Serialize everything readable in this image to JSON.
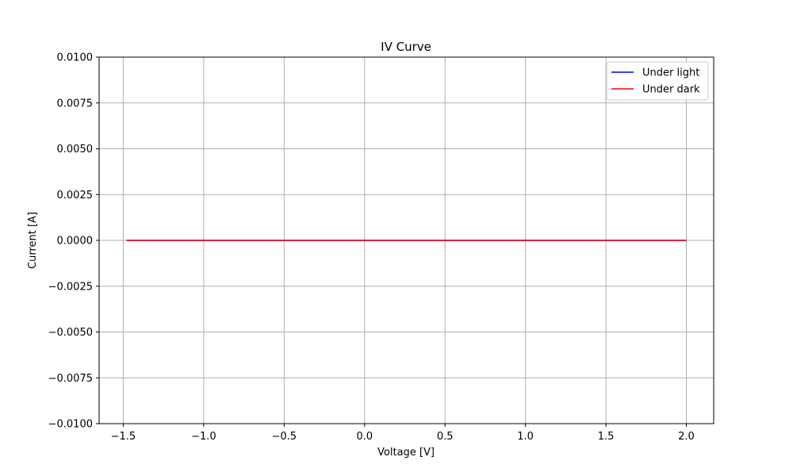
{
  "chart_data": {
    "type": "line",
    "title": "IV Curve",
    "xlabel": "Voltage [V]",
    "ylabel": "Current [A]",
    "xlim": [
      -1.65,
      2.17
    ],
    "ylim": [
      -0.01,
      0.01
    ],
    "xticks": [
      -1.5,
      -1.0,
      -0.5,
      0.0,
      0.5,
      1.0,
      1.5,
      2.0
    ],
    "xtick_labels": [
      "−1.5",
      "−1.0",
      "−0.5",
      "0.0",
      "0.5",
      "1.0",
      "1.5",
      "2.0"
    ],
    "yticks": [
      0.01,
      0.0075,
      0.005,
      0.0025,
      0.0,
      -0.0025,
      -0.005,
      -0.0075,
      -0.01
    ],
    "ytick_labels": [
      "0.0100",
      "0.0075",
      "0.0050",
      "0.0025",
      "0.0000",
      "−0.0025",
      "−0.0050",
      "−0.0075",
      "−0.0100"
    ],
    "grid": true,
    "legend_position": "top-right",
    "series": [
      {
        "name": "Under light",
        "color": "#0000ff",
        "x": [
          -1.48,
          2.0
        ],
        "y": [
          0.0,
          0.0
        ]
      },
      {
        "name": "Under dark",
        "color": "#ff0000",
        "x": [
          -1.48,
          2.0
        ],
        "y": [
          0.0,
          0.0
        ]
      }
    ]
  }
}
